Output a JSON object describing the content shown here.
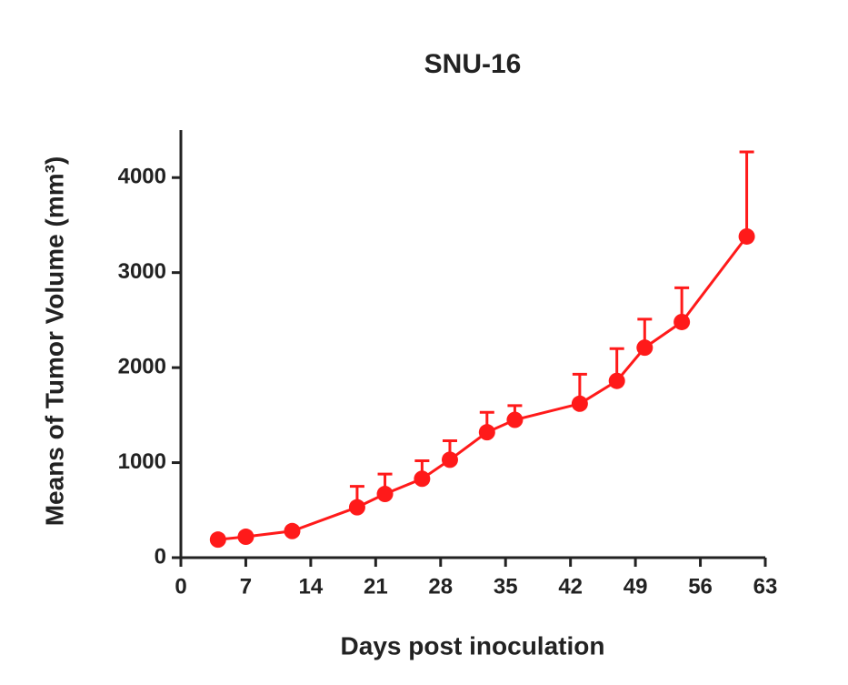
{
  "chart_data": {
    "type": "line",
    "title": "SNU-16",
    "xlabel": "Days post inoculation",
    "ylabel": "Means of Tumor Volume (mm³)",
    "x": [
      4,
      7,
      12,
      19,
      22,
      26,
      29,
      33,
      36,
      43,
      47,
      50,
      54,
      61
    ],
    "values": [
      190,
      220,
      280,
      530,
      670,
      830,
      1030,
      1320,
      1450,
      1620,
      1860,
      2210,
      2480,
      3380
    ],
    "errors": [
      20,
      20,
      20,
      220,
      210,
      190,
      200,
      210,
      150,
      310,
      340,
      300,
      360,
      890
    ],
    "color": "#ff1a1a",
    "xlim": [
      0,
      63
    ],
    "xticks": [
      0,
      7,
      14,
      21,
      28,
      35,
      42,
      49,
      56,
      63
    ],
    "ylim": [
      0,
      4500
    ],
    "yticks": [
      0,
      1000,
      2000,
      3000,
      4000
    ]
  }
}
